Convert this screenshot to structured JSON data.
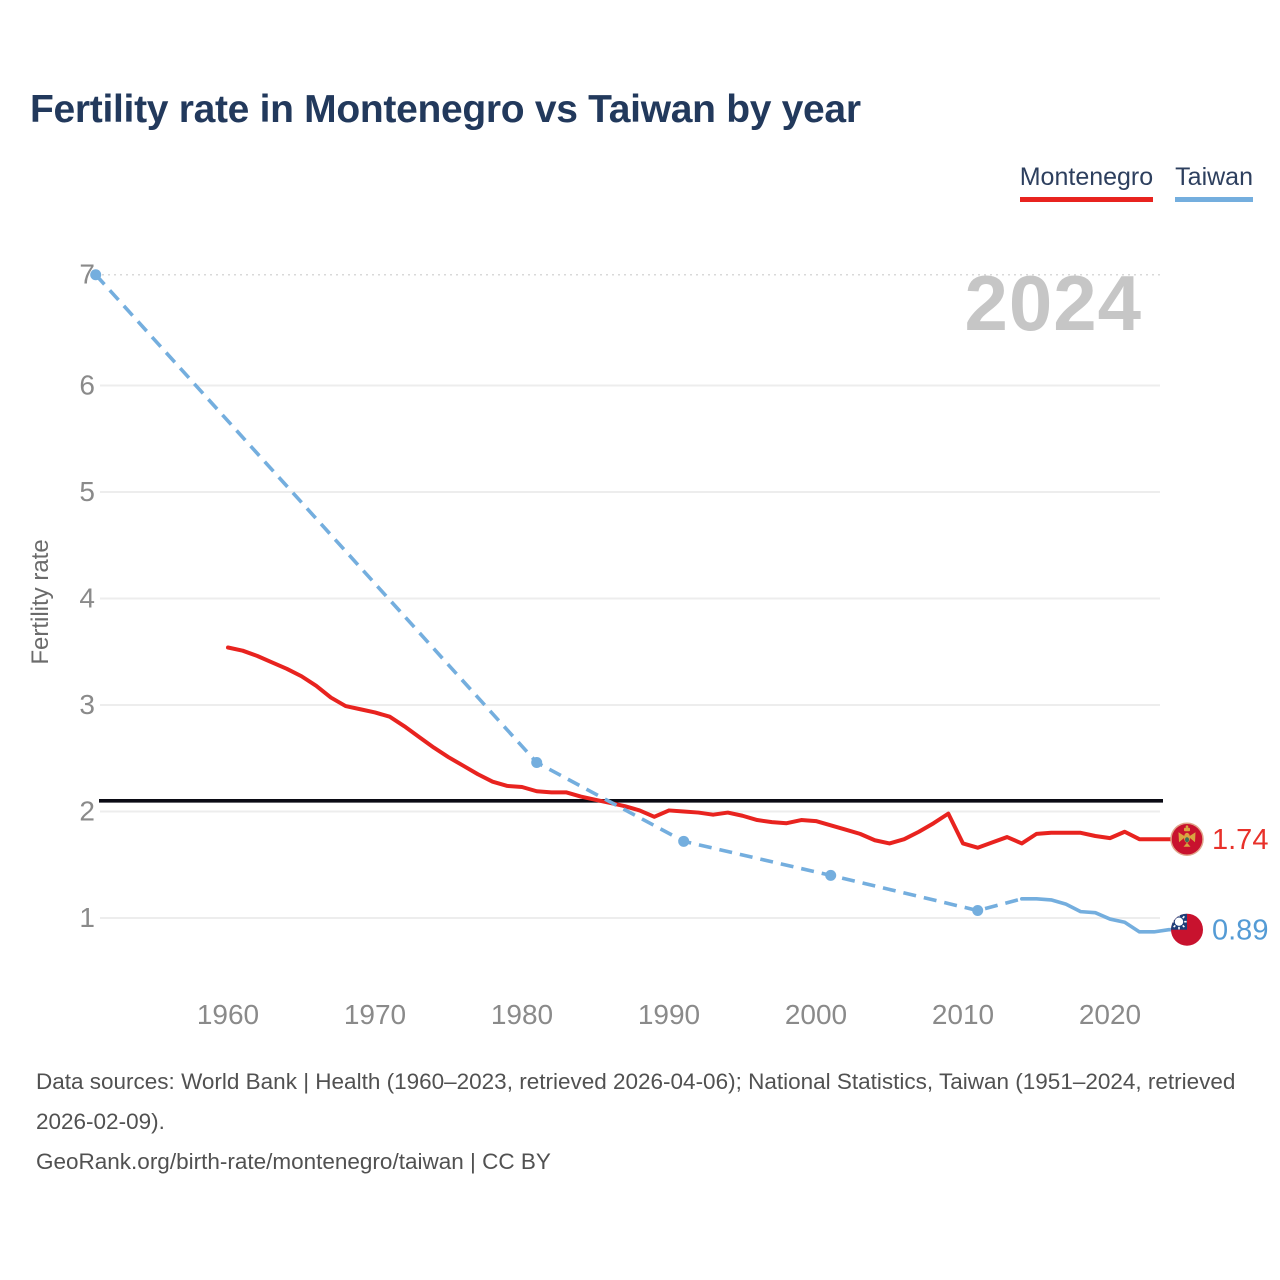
{
  "title": "Fertility rate in Montenegro vs Taiwan by year",
  "watermark": "2024",
  "legend": {
    "items": [
      {
        "label": "Montenegro",
        "color": "#e8231f"
      },
      {
        "label": "Taiwan",
        "color": "#74aede"
      }
    ]
  },
  "y_axis_label": "Fertility rate",
  "footer": {
    "sources": "Data sources: World Bank | Health (1960–2023, retrieved 2026-04-06); National Statistics, Taiwan (1951–2024, retrieved 2026-02-09).",
    "link": "GeoRank.org/birth-rate/montenegro/taiwan | CC BY"
  },
  "chart_data": {
    "type": "line",
    "title": "Fertility rate in Montenegro vs Taiwan by year",
    "xlabel": "",
    "ylabel": "Fertility rate",
    "x_ticks": [
      1960,
      1970,
      1980,
      1990,
      2000,
      2010,
      2020
    ],
    "y_ticks": [
      1,
      2,
      3,
      4,
      5,
      6,
      7
    ],
    "x_range": [
      1951,
      2024
    ],
    "ylim": [
      0.5,
      7.2
    ],
    "grid": "horizontal",
    "dotted_top_gridline_value": 7.04,
    "reference_line": 2.1,
    "legend_position": "top-right",
    "watermark": "2024",
    "series": [
      {
        "name": "Montenegro",
        "color": "#e8231f",
        "label_color": "#e8312a",
        "line_style": "solid",
        "start_year": 1960,
        "values": [
          3.54,
          3.51,
          3.46,
          3.4,
          3.34,
          3.27,
          3.18,
          3.07,
          2.99,
          2.96,
          2.93,
          2.89,
          2.8,
          2.7,
          2.6,
          2.51,
          2.43,
          2.35,
          2.28,
          2.24,
          2.23,
          2.19,
          2.18,
          2.18,
          2.14,
          2.11,
          2.08,
          2.05,
          2.01,
          1.95,
          2.01,
          2.0,
          1.99,
          1.97,
          1.99,
          1.96,
          1.92,
          1.9,
          1.89,
          1.92,
          1.91,
          1.87,
          1.83,
          1.79,
          1.73,
          1.7,
          1.74,
          1.81,
          1.89,
          1.98,
          1.7,
          1.66,
          1.71,
          1.76,
          1.7,
          1.79,
          1.8,
          1.8,
          1.8,
          1.77,
          1.75,
          1.81,
          1.74,
          1.74
        ],
        "end_year": 2023,
        "end_value_label": "1.74"
      },
      {
        "name": "Taiwan",
        "color": "#74aede",
        "label_color": "#549bd5",
        "line_style": "dashed-then-solid",
        "points": [
          [
            1951,
            7.04
          ],
          [
            1981,
            2.46
          ],
          [
            1991,
            1.72
          ],
          [
            2001,
            1.4
          ],
          [
            2011,
            1.07
          ],
          [
            2014,
            1.18
          ],
          [
            2015,
            1.18
          ],
          [
            2016,
            1.17
          ],
          [
            2017,
            1.13
          ],
          [
            2018,
            1.06
          ],
          [
            2019,
            1.05
          ],
          [
            2020,
            0.99
          ],
          [
            2021,
            0.96
          ],
          [
            2022,
            0.87
          ],
          [
            2023,
            0.87
          ],
          [
            2024,
            0.89
          ]
        ],
        "solid_from_year": 2014,
        "marker_years": [
          1951,
          1981,
          1991,
          2001,
          2011
        ],
        "end_year": 2024,
        "end_value_label": "0.89"
      }
    ]
  }
}
